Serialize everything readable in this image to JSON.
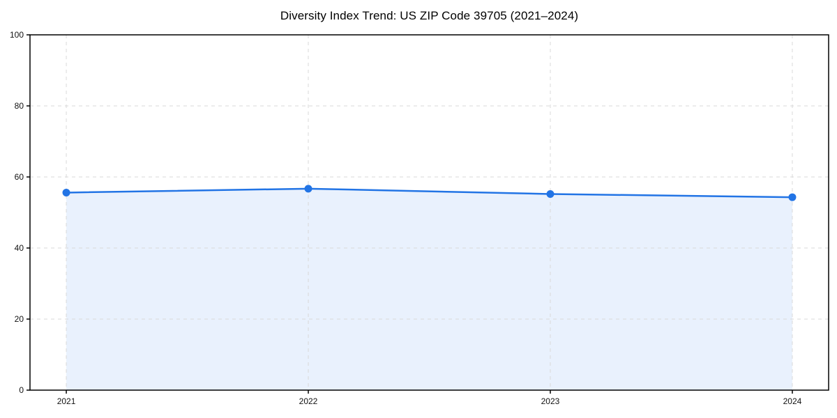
{
  "chart_data": {
    "type": "area",
    "title": "Diversity Index Trend: US ZIP Code 39705 (2021–2024)",
    "series_name": "Diversity Index",
    "categories": [
      "2021",
      "2022",
      "2023",
      "2024"
    ],
    "x": [
      2021,
      2022,
      2023,
      2024
    ],
    "values": [
      55.6,
      56.7,
      55.2,
      54.3
    ],
    "xlabel": "",
    "ylabel": "",
    "ylim": [
      0,
      100
    ],
    "yticks": [
      0,
      20,
      40,
      60,
      80,
      100
    ],
    "grid": true,
    "grid_style": "dashed",
    "legend": false,
    "colors": {
      "line": "#2274e5",
      "marker": "#2274e5",
      "fill": "#e9f1fd",
      "grid": "#d9d9d9",
      "spine": "#000000",
      "tick_text": "#111111",
      "background": "#ffffff"
    }
  }
}
